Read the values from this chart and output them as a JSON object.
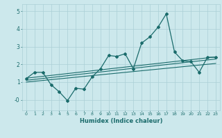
{
  "xlabel": "Humidex (Indice chaleur)",
  "x_data": [
    0,
    1,
    2,
    3,
    4,
    5,
    6,
    7,
    8,
    9,
    10,
    11,
    12,
    13,
    14,
    15,
    16,
    17,
    18,
    19,
    20,
    21,
    22,
    23
  ],
  "y_main": [
    1.2,
    1.55,
    1.55,
    0.85,
    0.45,
    -0.05,
    0.65,
    0.6,
    1.3,
    1.75,
    2.5,
    2.45,
    2.6,
    1.75,
    3.2,
    3.55,
    4.1,
    4.85,
    2.7,
    2.2,
    2.15,
    1.55,
    2.4,
    2.4
  ],
  "line_color": "#1a6b6b",
  "bg_color": "#cce8ec",
  "grid_color": "#aacfd6",
  "ylim": [
    -0.6,
    5.4
  ],
  "xlim": [
    -0.5,
    23.5
  ],
  "trend_lines": [
    {
      "x0": 0,
      "y0": 1.22,
      "x1": 23,
      "y1": 2.42
    },
    {
      "x0": 0,
      "y0": 1.1,
      "x1": 23,
      "y1": 2.3
    },
    {
      "x0": 0,
      "y0": 1.0,
      "x1": 23,
      "y1": 2.05
    }
  ]
}
